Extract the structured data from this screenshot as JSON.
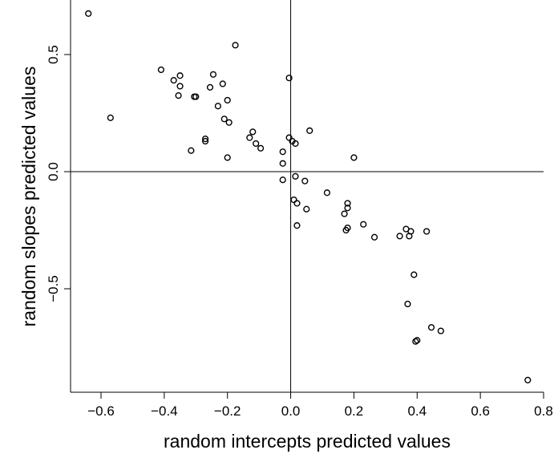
{
  "chart_data": {
    "type": "scatter",
    "xlabel": "random intercepts predicted values",
    "ylabel": "random slopes predicted values",
    "xlim": [
      -0.66,
      0.8
    ],
    "ylim": [
      -0.94,
      0.73
    ],
    "grid": false,
    "x_ticks": [
      {
        "value": -0.6,
        "label": "−0.6"
      },
      {
        "value": -0.4,
        "label": "−0.4"
      },
      {
        "value": -0.2,
        "label": "−0.2"
      },
      {
        "value": 0.0,
        "label": "0.0"
      },
      {
        "value": 0.2,
        "label": "0.2"
      },
      {
        "value": 0.4,
        "label": "0.4"
      },
      {
        "value": 0.6,
        "label": "0.6"
      },
      {
        "value": 0.8,
        "label": "0.8"
      }
    ],
    "y_ticks": [
      {
        "value": -0.5,
        "label": "−0.5"
      },
      {
        "value": 0.0,
        "label": "0.0"
      },
      {
        "value": 0.5,
        "label": "0.5"
      }
    ],
    "reference_lines": {
      "x": 0.0,
      "y": 0.0
    },
    "points": [
      [
        -0.64,
        0.675
      ],
      [
        -0.57,
        0.23
      ],
      [
        -0.41,
        0.435
      ],
      [
        -0.37,
        0.39
      ],
      [
        -0.35,
        0.41
      ],
      [
        -0.35,
        0.365
      ],
      [
        -0.355,
        0.325
      ],
      [
        -0.305,
        0.32
      ],
      [
        -0.3,
        0.32
      ],
      [
        -0.315,
        0.09
      ],
      [
        -0.27,
        0.14
      ],
      [
        -0.27,
        0.13
      ],
      [
        -0.255,
        0.36
      ],
      [
        -0.245,
        0.415
      ],
      [
        -0.23,
        0.28
      ],
      [
        -0.215,
        0.375
      ],
      [
        -0.21,
        0.225
      ],
      [
        -0.2,
        0.305
      ],
      [
        -0.195,
        0.21
      ],
      [
        -0.2,
        0.06
      ],
      [
        -0.175,
        0.54
      ],
      [
        -0.13,
        0.145
      ],
      [
        -0.12,
        0.17
      ],
      [
        -0.11,
        0.12
      ],
      [
        -0.095,
        0.1
      ],
      [
        -0.005,
        0.4
      ],
      [
        -0.005,
        0.145
      ],
      [
        0.005,
        0.13
      ],
      [
        0.015,
        0.12
      ],
      [
        -0.025,
        0.085
      ],
      [
        -0.025,
        0.035
      ],
      [
        -0.025,
        -0.035
      ],
      [
        0.015,
        -0.02
      ],
      [
        0.045,
        -0.04
      ],
      [
        0.06,
        0.175
      ],
      [
        0.01,
        -0.12
      ],
      [
        0.02,
        -0.135
      ],
      [
        0.05,
        -0.16
      ],
      [
        0.02,
        -0.23
      ],
      [
        0.115,
        -0.09
      ],
      [
        0.2,
        0.06
      ],
      [
        0.18,
        -0.135
      ],
      [
        0.18,
        -0.155
      ],
      [
        0.17,
        -0.18
      ],
      [
        0.18,
        -0.24
      ],
      [
        0.175,
        -0.25
      ],
      [
        0.23,
        -0.225
      ],
      [
        0.265,
        -0.28
      ],
      [
        0.345,
        -0.275
      ],
      [
        0.365,
        -0.245
      ],
      [
        0.38,
        -0.255
      ],
      [
        0.375,
        -0.275
      ],
      [
        0.43,
        -0.255
      ],
      [
        0.39,
        -0.44
      ],
      [
        0.37,
        -0.565
      ],
      [
        0.445,
        -0.665
      ],
      [
        0.475,
        -0.68
      ],
      [
        0.4,
        -0.72
      ],
      [
        0.395,
        -0.725
      ],
      [
        0.75,
        -0.89
      ]
    ]
  }
}
